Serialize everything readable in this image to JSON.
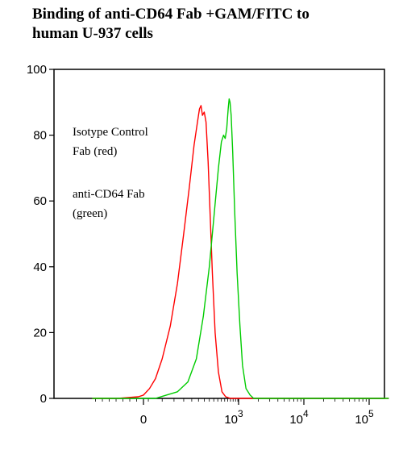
{
  "chart_data": {
    "type": "line",
    "title": "Binding of anti-CD64 Fab +GAM/FITC to\nhuman U-937 cells",
    "xlabel": "",
    "ylabel": "",
    "x_scale": "biexponential",
    "xlim": [
      -300,
      200000
    ],
    "ylim": [
      0,
      100
    ],
    "y_ticks": [
      0,
      20,
      40,
      60,
      80,
      100
    ],
    "x_ticks": [
      {
        "value": 0,
        "label": "0"
      },
      {
        "value": 1000,
        "label": "10",
        "exp": "3"
      },
      {
        "value": 10000,
        "label": "10",
        "exp": "4"
      },
      {
        "value": 100000,
        "label": "10",
        "exp": "5"
      }
    ],
    "annotations": [
      {
        "lines": [
          "Isotype Control",
          "Fab (red)"
        ]
      },
      {
        "lines": [
          "anti-CD64 Fab",
          "(green)"
        ]
      }
    ],
    "grid": false,
    "series": [
      {
        "color": "#ff0000",
        "points": [
          [
            -300,
            0
          ],
          [
            -150,
            0
          ],
          [
            -30,
            0.5
          ],
          [
            0,
            1
          ],
          [
            25,
            3
          ],
          [
            50,
            6
          ],
          [
            80,
            12
          ],
          [
            120,
            22
          ],
          [
            160,
            35
          ],
          [
            200,
            50
          ],
          [
            240,
            64
          ],
          [
            280,
            77
          ],
          [
            310,
            84
          ],
          [
            330,
            88
          ],
          [
            345,
            89
          ],
          [
            360,
            86
          ],
          [
            380,
            87
          ],
          [
            400,
            84
          ],
          [
            425,
            72
          ],
          [
            450,
            56
          ],
          [
            480,
            38
          ],
          [
            520,
            20
          ],
          [
            570,
            8
          ],
          [
            630,
            2
          ],
          [
            700,
            0.5
          ],
          [
            800,
            0
          ],
          [
            200000,
            0
          ]
        ]
      },
      {
        "color": "#00cc00",
        "points": [
          [
            -300,
            0
          ],
          [
            0,
            0
          ],
          [
            50,
            0
          ],
          [
            100,
            1
          ],
          [
            160,
            2
          ],
          [
            230,
            5
          ],
          [
            300,
            12
          ],
          [
            370,
            25
          ],
          [
            440,
            40
          ],
          [
            510,
            57
          ],
          [
            570,
            70
          ],
          [
            620,
            78
          ],
          [
            660,
            80
          ],
          [
            690,
            79
          ],
          [
            720,
            82
          ],
          [
            750,
            88
          ],
          [
            770,
            91
          ],
          [
            790,
            90
          ],
          [
            815,
            86
          ],
          [
            850,
            75
          ],
          [
            900,
            56
          ],
          [
            960,
            38
          ],
          [
            1050,
            22
          ],
          [
            1150,
            10
          ],
          [
            1300,
            3
          ],
          [
            1500,
            1
          ],
          [
            1700,
            0
          ],
          [
            200000,
            0
          ]
        ]
      }
    ]
  }
}
